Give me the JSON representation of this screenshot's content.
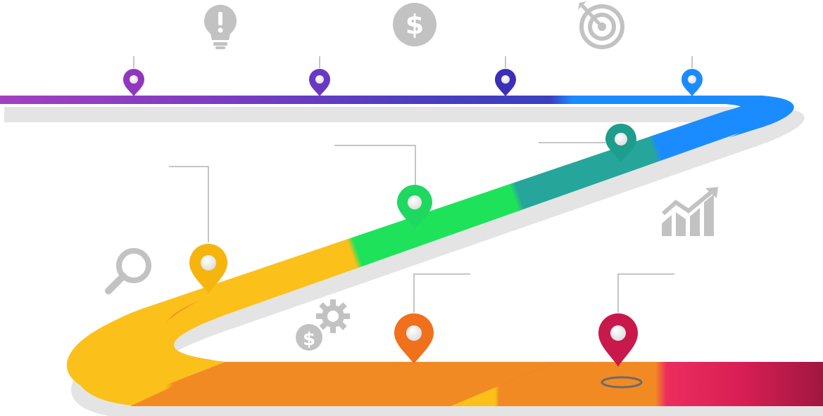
{
  "colors": {
    "background": "#ffffff",
    "icon_gray": "#c2c2c2",
    "connector_gray": "#8c8c8c",
    "road_shadow": "#d9d9d9",
    "top_track": [
      "#9b3fc1",
      "#6a3dc2",
      "#3b3fc0",
      "#1a8cff"
    ],
    "road_segments": [
      "#1a8cff",
      "#26a69a",
      "#1ee35a",
      "#fbc01a",
      "#f28a24",
      "#e8255f",
      "#a0173f"
    ],
    "pins": {
      "purple": "#8e34c0",
      "violet": "#6a37c4",
      "indigo": "#3a2fb8",
      "blue": "#1a8cff",
      "teal": "#1e9c8c",
      "green": "#1ed860",
      "yellow": "#f6b40e",
      "orange": "#f0701c",
      "crimson": "#d41a50"
    }
  },
  "milestones": [
    {
      "name": "milestone-1",
      "color": "purple",
      "icon": "lightbulb-exclamation-icon"
    },
    {
      "name": "milestone-2",
      "color": "violet",
      "icon": "dollar-coin-icon"
    },
    {
      "name": "milestone-3",
      "color": "indigo",
      "icon": "target-arrow-icon"
    },
    {
      "name": "milestone-4",
      "color": "blue",
      "icon": ""
    },
    {
      "name": "milestone-5",
      "color": "teal",
      "icon": "growth-chart-icon"
    },
    {
      "name": "milestone-6",
      "color": "green",
      "icon": ""
    },
    {
      "name": "milestone-7",
      "color": "yellow",
      "icon": "magnifier-icon"
    },
    {
      "name": "milestone-8",
      "color": "orange",
      "icon": "dollar-gear-icon"
    },
    {
      "name": "milestone-9",
      "color": "crimson",
      "icon": ""
    }
  ]
}
